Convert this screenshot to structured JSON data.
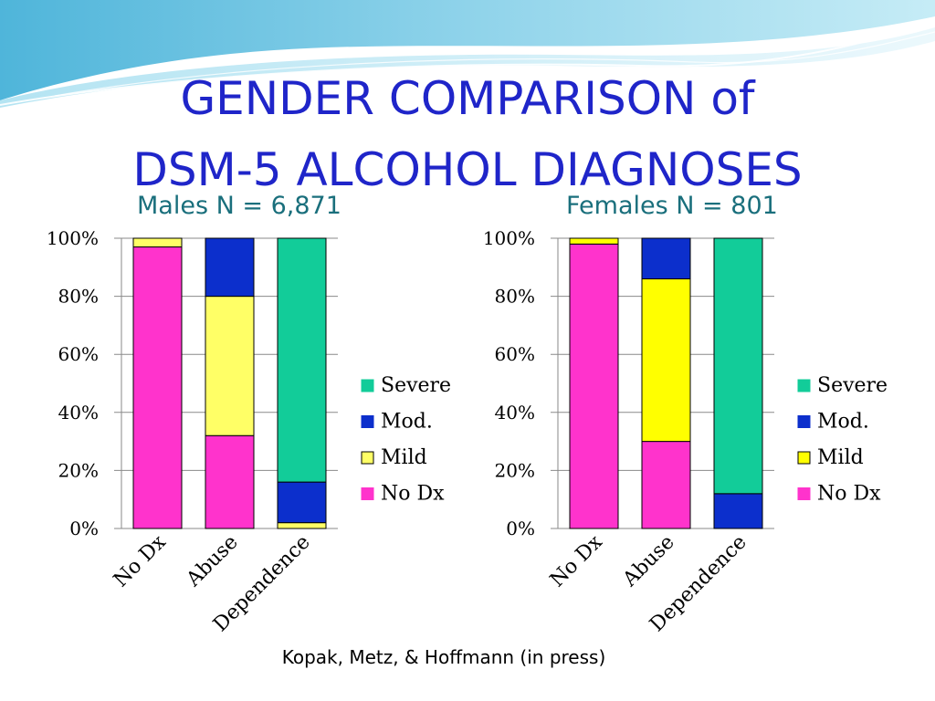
{
  "title": {
    "line1": "GENDER COMPARISON of",
    "line2": "DSM-5 ALCOHOL DIAGNOSES"
  },
  "citation": "Kopak, Metz, & Hoffmann (in press)",
  "chart_data": [
    {
      "type": "bar",
      "stacked": true,
      "title": "Males  N = 6,871",
      "categories": [
        "No Dx",
        "Abuse",
        "Dependence"
      ],
      "yticks": [
        "0%",
        "20%",
        "40%",
        "60%",
        "80%",
        "100%"
      ],
      "ylim": [
        0,
        100
      ],
      "grid": true,
      "legend_position": "right",
      "series": [
        {
          "name": "No Dx",
          "color": "#ff33cc",
          "values": [
            97,
            32,
            0
          ]
        },
        {
          "name": "Mild",
          "color": "#ffff66",
          "values": [
            3,
            48,
            2
          ]
        },
        {
          "name": "Mod.",
          "color": "#0c2fcc",
          "values": [
            0,
            20,
            14
          ]
        },
        {
          "name": "Severe",
          "color": "#12cc99",
          "values": [
            0,
            0,
            84
          ]
        }
      ]
    },
    {
      "type": "bar",
      "stacked": true,
      "title": "Females  N = 801",
      "categories": [
        "No Dx",
        "Abuse",
        "Dependence"
      ],
      "yticks": [
        "0%",
        "20%",
        "40%",
        "60%",
        "80%",
        "100%"
      ],
      "ylim": [
        0,
        100
      ],
      "grid": true,
      "legend_position": "right",
      "series": [
        {
          "name": "No Dx",
          "color": "#ff33cc",
          "values": [
            98,
            30,
            0
          ]
        },
        {
          "name": "Mild",
          "color": "#ffff00",
          "values": [
            2,
            56,
            0
          ]
        },
        {
          "name": "Mod.",
          "color": "#0c2fcc",
          "values": [
            0,
            14,
            12
          ]
        },
        {
          "name": "Severe",
          "color": "#12cc99",
          "values": [
            0,
            0,
            88
          ]
        }
      ]
    }
  ]
}
